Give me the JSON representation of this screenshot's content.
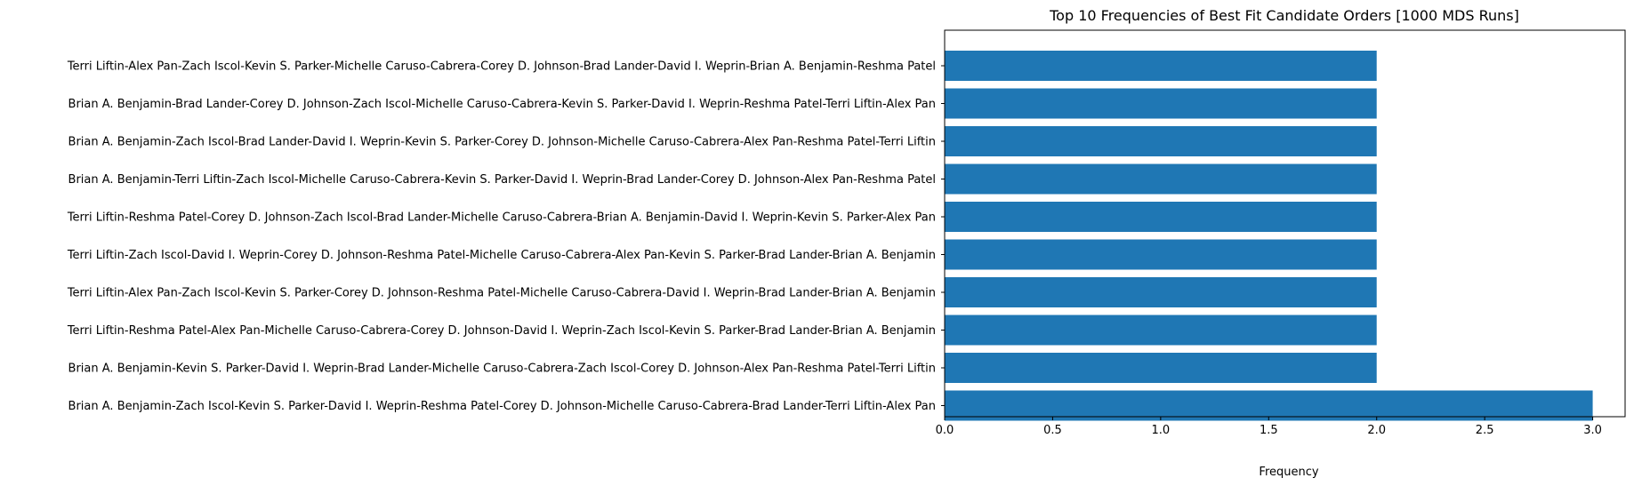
{
  "chart_data": {
    "type": "bar",
    "orientation": "horizontal",
    "title": "Top 10 Frequencies of Best Fit Candidate Orders [1000 MDS Runs]",
    "xlabel": "Frequency",
    "ylabel": "",
    "xlim": [
      0,
      3.15
    ],
    "xticks": [
      "0.0",
      "0.5",
      "1.0",
      "1.5",
      "2.0",
      "2.5",
      "3.0"
    ],
    "bar_color": "#1f77b4",
    "grid": false,
    "categories": [
      "Brian A. Benjamin-Zach Iscol-Kevin S. Parker-David I. Weprin-Reshma Patel-Corey D. Johnson-Michelle Caruso-Cabrera-Brad Lander-Terri Liftin-Alex Pan",
      "Brian A. Benjamin-Kevin S. Parker-David I. Weprin-Brad Lander-Michelle Caruso-Cabrera-Zach Iscol-Corey D. Johnson-Alex Pan-Reshma Patel-Terri Liftin",
      "Terri Liftin-Reshma Patel-Alex Pan-Michelle Caruso-Cabrera-Corey D. Johnson-David I. Weprin-Zach Iscol-Kevin S. Parker-Brad Lander-Brian A. Benjamin",
      "Terri Liftin-Alex Pan-Zach Iscol-Kevin S. Parker-Corey D. Johnson-Reshma Patel-Michelle Caruso-Cabrera-David I. Weprin-Brad Lander-Brian A. Benjamin",
      "Terri Liftin-Zach Iscol-David I. Weprin-Corey D. Johnson-Reshma Patel-Michelle Caruso-Cabrera-Alex Pan-Kevin S. Parker-Brad Lander-Brian A. Benjamin",
      "Terri Liftin-Reshma Patel-Corey D. Johnson-Zach Iscol-Brad Lander-Michelle Caruso-Cabrera-Brian A. Benjamin-David I. Weprin-Kevin S. Parker-Alex Pan",
      "Brian A. Benjamin-Terri Liftin-Zach Iscol-Michelle Caruso-Cabrera-Kevin S. Parker-David I. Weprin-Brad Lander-Corey D. Johnson-Alex Pan-Reshma Patel",
      "Brian A. Benjamin-Zach Iscol-Brad Lander-David I. Weprin-Kevin S. Parker-Corey D. Johnson-Michelle Caruso-Cabrera-Alex Pan-Reshma Patel-Terri Liftin",
      "Brian A. Benjamin-Brad Lander-Corey D. Johnson-Zach Iscol-Michelle Caruso-Cabrera-Kevin S. Parker-David I. Weprin-Reshma Patel-Terri Liftin-Alex Pan",
      "Terri Liftin-Alex Pan-Zach Iscol-Kevin S. Parker-Michelle Caruso-Cabrera-Corey D. Johnson-Brad Lander-David I. Weprin-Brian A. Benjamin-Reshma Patel"
    ],
    "values": [
      3,
      2,
      2,
      2,
      2,
      2,
      2,
      2,
      2,
      2
    ]
  }
}
